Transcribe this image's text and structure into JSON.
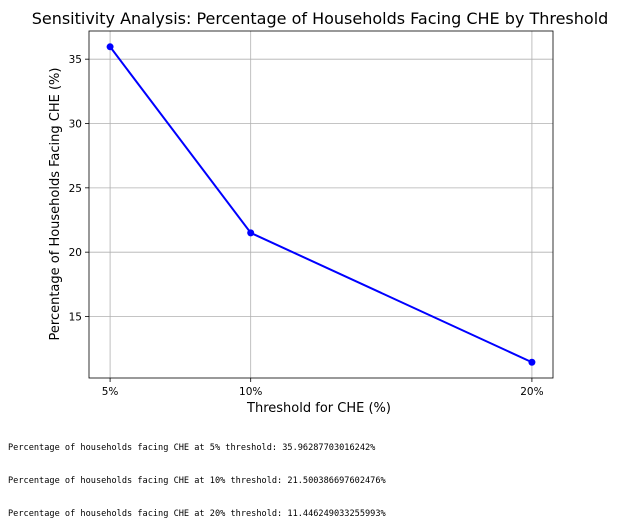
{
  "chart_data": {
    "type": "line",
    "title": "Sensitivity Analysis: Percentage of Households Facing CHE by Threshold",
    "xlabel": "Threshold for CHE (%)",
    "ylabel": "Percentage of Households Facing CHE (%)",
    "x": [
      5,
      10,
      20
    ],
    "x_tick_labels": [
      "5%",
      "10%",
      "20%"
    ],
    "xlim": [
      4.25,
      20.75
    ],
    "y_ticks": [
      15,
      20,
      25,
      30,
      35
    ],
    "ylim": [
      10.22,
      37.19
    ],
    "grid": true,
    "series": [
      {
        "name": "Percentage of Households Facing CHE",
        "values": [
          35.96287703016242,
          21.500386697602476,
          11.446249033255993
        ],
        "color": "#0000ff",
        "marker": "circle"
      }
    ]
  },
  "output": {
    "lines": [
      "Percentage of households facing CHE at 5% threshold: 35.96287703016242%",
      "Percentage of households facing CHE at 10% threshold: 21.500386697602476%",
      "Percentage of households facing CHE at 20% threshold: 11.446249033255993%"
    ]
  }
}
